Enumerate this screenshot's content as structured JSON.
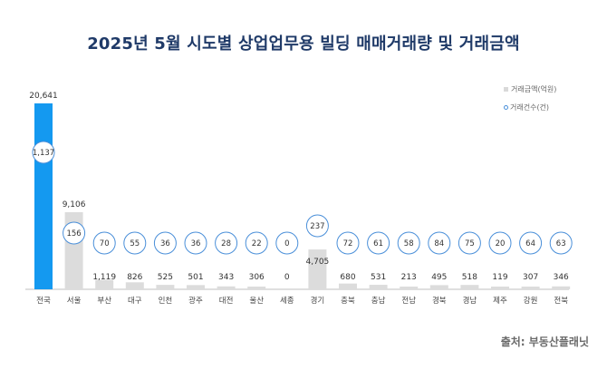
{
  "title": "2025년  5월 시도별 상업업무용 빌딩 매매거래량 및 거래금액",
  "source": "출처: 부동산플래닛",
  "colors": {
    "highlight_bar": "#1499f0",
    "bar": "#dcdcdc",
    "circle_stroke": "#4a8fd9",
    "axis": "#bfbfbf",
    "title": "#1f3a68"
  },
  "chart_data": {
    "type": "bar",
    "categories": [
      "전국",
      "서울",
      "부산",
      "대구",
      "인천",
      "광주",
      "대전",
      "울산",
      "세종",
      "경기",
      "충북",
      "충남",
      "전남",
      "경북",
      "경남",
      "제주",
      "강원",
      "전북"
    ],
    "series": [
      {
        "name": "거래금액(억원)",
        "type": "bar",
        "values": [
          20641,
          9106,
          1119,
          826,
          525,
          501,
          343,
          306,
          0,
          4705,
          680,
          531,
          213,
          495,
          518,
          119,
          307,
          346
        ]
      },
      {
        "name": "거래건수(건)",
        "type": "marker",
        "values": [
          1137,
          156,
          70,
          55,
          36,
          36,
          28,
          22,
          0,
          237,
          72,
          61,
          58,
          84,
          75,
          20,
          64,
          63
        ]
      }
    ],
    "bar_labels": [
      "20,641",
      "9,106",
      "1,119",
      "826",
      "525",
      "501",
      "343",
      "306",
      "0",
      "4,705",
      "680",
      "531",
      "213",
      "495",
      "518",
      "119",
      "307",
      "346"
    ],
    "count_labels": [
      "1,137",
      "156",
      "70",
      "55",
      "36",
      "36",
      "28",
      "22",
      "0",
      "237",
      "72",
      "61",
      "58",
      "84",
      "75",
      "20",
      "64",
      "63"
    ],
    "highlight_index": 0,
    "legend": [
      "거래금액(억원)",
      "거래건수(건)"
    ],
    "legend_position": "top-right",
    "grid": false
  }
}
